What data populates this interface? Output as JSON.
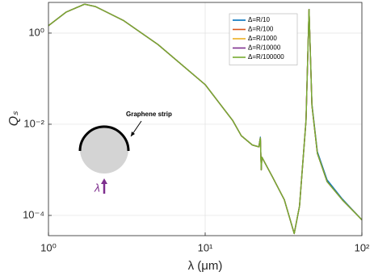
{
  "chart_data": {
    "type": "line",
    "xlabel": "λ (μm)",
    "ylabel": "Qₛ",
    "log_x": true,
    "log_y": true,
    "grid": true,
    "legend": "upper right",
    "annotations": [
      "Graphene strip",
      "λ"
    ],
    "xlim": [
      1,
      100
    ],
    "ylim": [
      3.6e-05,
      4.7
    ],
    "xticks": [
      {
        "value": 1,
        "label": "10⁰"
      },
      {
        "value": 10,
        "label": "10¹"
      },
      {
        "value": 100,
        "label": "10²"
      }
    ],
    "yticks": [
      {
        "value": 0.0001,
        "label": "10⁻⁴"
      },
      {
        "value": 0.01,
        "label": "10⁻²"
      },
      {
        "value": 1,
        "label": "10⁰"
      }
    ],
    "x": [
      1,
      1.3,
      1.7,
      2,
      3,
      5,
      10,
      15,
      17,
      20,
      22,
      22.5,
      22.8,
      23,
      27,
      32,
      37,
      40,
      44,
      46,
      48,
      52,
      60,
      75,
      100
    ],
    "series": [
      {
        "name": "Δ=R/10",
        "color": "#0072BD",
        "values": [
          1.45,
          2.9,
          4.3,
          3.8,
          1.9,
          0.56,
          0.074,
          0.012,
          0.0056,
          0.0035,
          0.0032,
          0.0052,
          0.001,
          0.0019,
          0.00068,
          0.00022,
          4e-05,
          0.00016,
          0.012,
          3.3,
          0.028,
          0.0025,
          0.0006,
          0.00023,
          8e-05
        ]
      },
      {
        "name": "Δ=R/100",
        "color": "#D95319",
        "values": [
          1.45,
          2.9,
          4.3,
          3.8,
          1.9,
          0.56,
          0.074,
          0.012,
          0.0056,
          0.0035,
          0.0032,
          0.005,
          0.001,
          0.0019,
          0.00068,
          0.00022,
          4e-05,
          0.00016,
          0.012,
          3.3,
          0.026,
          0.0023,
          0.00055,
          0.00022,
          8e-05
        ]
      },
      {
        "name": "Δ=R/1000",
        "color": "#EDB120",
        "values": [
          1.45,
          2.9,
          4.3,
          3.8,
          1.9,
          0.56,
          0.074,
          0.012,
          0.0056,
          0.0035,
          0.0032,
          0.005,
          0.001,
          0.0019,
          0.00068,
          0.00022,
          4e-05,
          0.00016,
          0.012,
          3.3,
          0.026,
          0.0023,
          0.00055,
          0.00022,
          8e-05
        ]
      },
      {
        "name": "Δ=R/10000",
        "color": "#7E2F8E",
        "values": [
          1.45,
          2.9,
          4.3,
          3.8,
          1.9,
          0.56,
          0.074,
          0.012,
          0.0056,
          0.0035,
          0.0032,
          0.005,
          0.001,
          0.0019,
          0.00068,
          0.00022,
          4e-05,
          0.00016,
          0.012,
          3.3,
          0.026,
          0.0023,
          0.00055,
          0.00022,
          8e-05
        ]
      },
      {
        "name": "Δ=R/100000",
        "color": "#77AC30",
        "values": [
          1.45,
          2.9,
          4.3,
          3.8,
          1.9,
          0.56,
          0.074,
          0.012,
          0.0056,
          0.0035,
          0.0032,
          0.005,
          0.001,
          0.0019,
          0.00068,
          0.00022,
          4e-05,
          0.00016,
          0.012,
          3.3,
          0.026,
          0.0023,
          0.00055,
          0.00022,
          8e-05
        ]
      }
    ]
  }
}
